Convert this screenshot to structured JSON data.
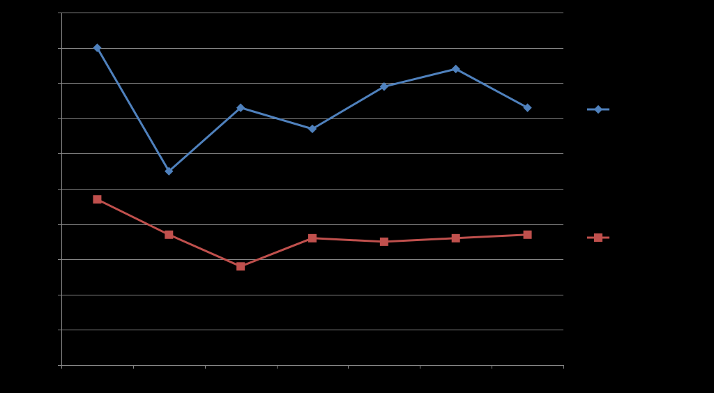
{
  "chart_data": {
    "type": "line",
    "title": "",
    "xlabel": "",
    "ylabel": "",
    "categories": [
      "",
      "",
      "",
      "",
      "",
      "",
      ""
    ],
    "ylim": [
      0,
      10
    ],
    "grid": true,
    "legend_position": "right",
    "series": [
      {
        "values": [
          9.0,
          5.5,
          7.3,
          6.7,
          7.9,
          8.4,
          7.3
        ],
        "color": "#4f81bd",
        "marker": "diamond"
      },
      {
        "values": [
          4.7,
          3.7,
          2.8,
          3.6,
          3.5,
          3.6,
          3.7
        ],
        "color": "#c0504d",
        "marker": "square"
      }
    ]
  }
}
